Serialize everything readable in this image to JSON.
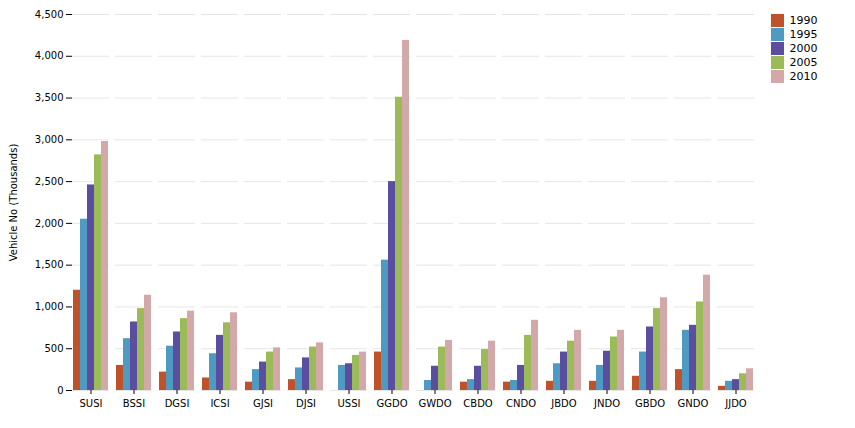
{
  "chart_data": {
    "type": "bar",
    "categories": [
      "SUSI",
      "BSSI",
      "DGSI",
      "ICSI",
      "GJSI",
      "DJSI",
      "USSI",
      "GGDO",
      "GWDO",
      "CBDO",
      "CNDO",
      "JBDO",
      "JNDO",
      "GBDO",
      "GNDO",
      "JJDO"
    ],
    "series": [
      {
        "name": "1990",
        "color": "#C0522A",
        "values": [
          1200,
          300,
          220,
          150,
          100,
          130,
          0,
          460,
          0,
          100,
          100,
          110,
          110,
          170,
          250,
          50
        ]
      },
      {
        "name": "1995",
        "color": "#4F9AC0",
        "values": [
          2050,
          620,
          530,
          440,
          250,
          270,
          300,
          1560,
          120,
          130,
          120,
          320,
          300,
          460,
          720,
          110
        ]
      },
      {
        "name": "2000",
        "color": "#5B4EA0",
        "values": [
          2460,
          820,
          700,
          660,
          340,
          390,
          320,
          2500,
          290,
          290,
          300,
          460,
          470,
          760,
          780,
          130
        ]
      },
      {
        "name": "2005",
        "color": "#9BBB59",
        "values": [
          2820,
          980,
          860,
          810,
          460,
          520,
          420,
          3510,
          520,
          490,
          660,
          590,
          640,
          980,
          1060,
          200
        ]
      },
      {
        "name": "2010",
        "color": "#D3A8A8",
        "values": [
          2980,
          1140,
          950,
          930,
          510,
          570,
          460,
          4190,
          600,
          590,
          840,
          720,
          720,
          1110,
          1380,
          260
        ]
      }
    ],
    "ylabel": "Vehicle No (Thousands)",
    "ylim": [
      0,
      4500
    ],
    "yticks": [
      0,
      500,
      {
        "value": 1000,
        "label": "1,000"
      },
      {
        "value": 1500,
        "label": "1,500"
      },
      {
        "value": 2000,
        "label": "2,000"
      },
      {
        "value": 2500,
        "label": "2,500"
      },
      {
        "value": 3000,
        "label": "3,000"
      },
      {
        "value": 3500,
        "label": "3,500"
      },
      {
        "value": 4000,
        "label": "4,000"
      },
      {
        "value": 4500,
        "label": "4,500"
      }
    ],
    "grid": true,
    "legend": "right"
  }
}
